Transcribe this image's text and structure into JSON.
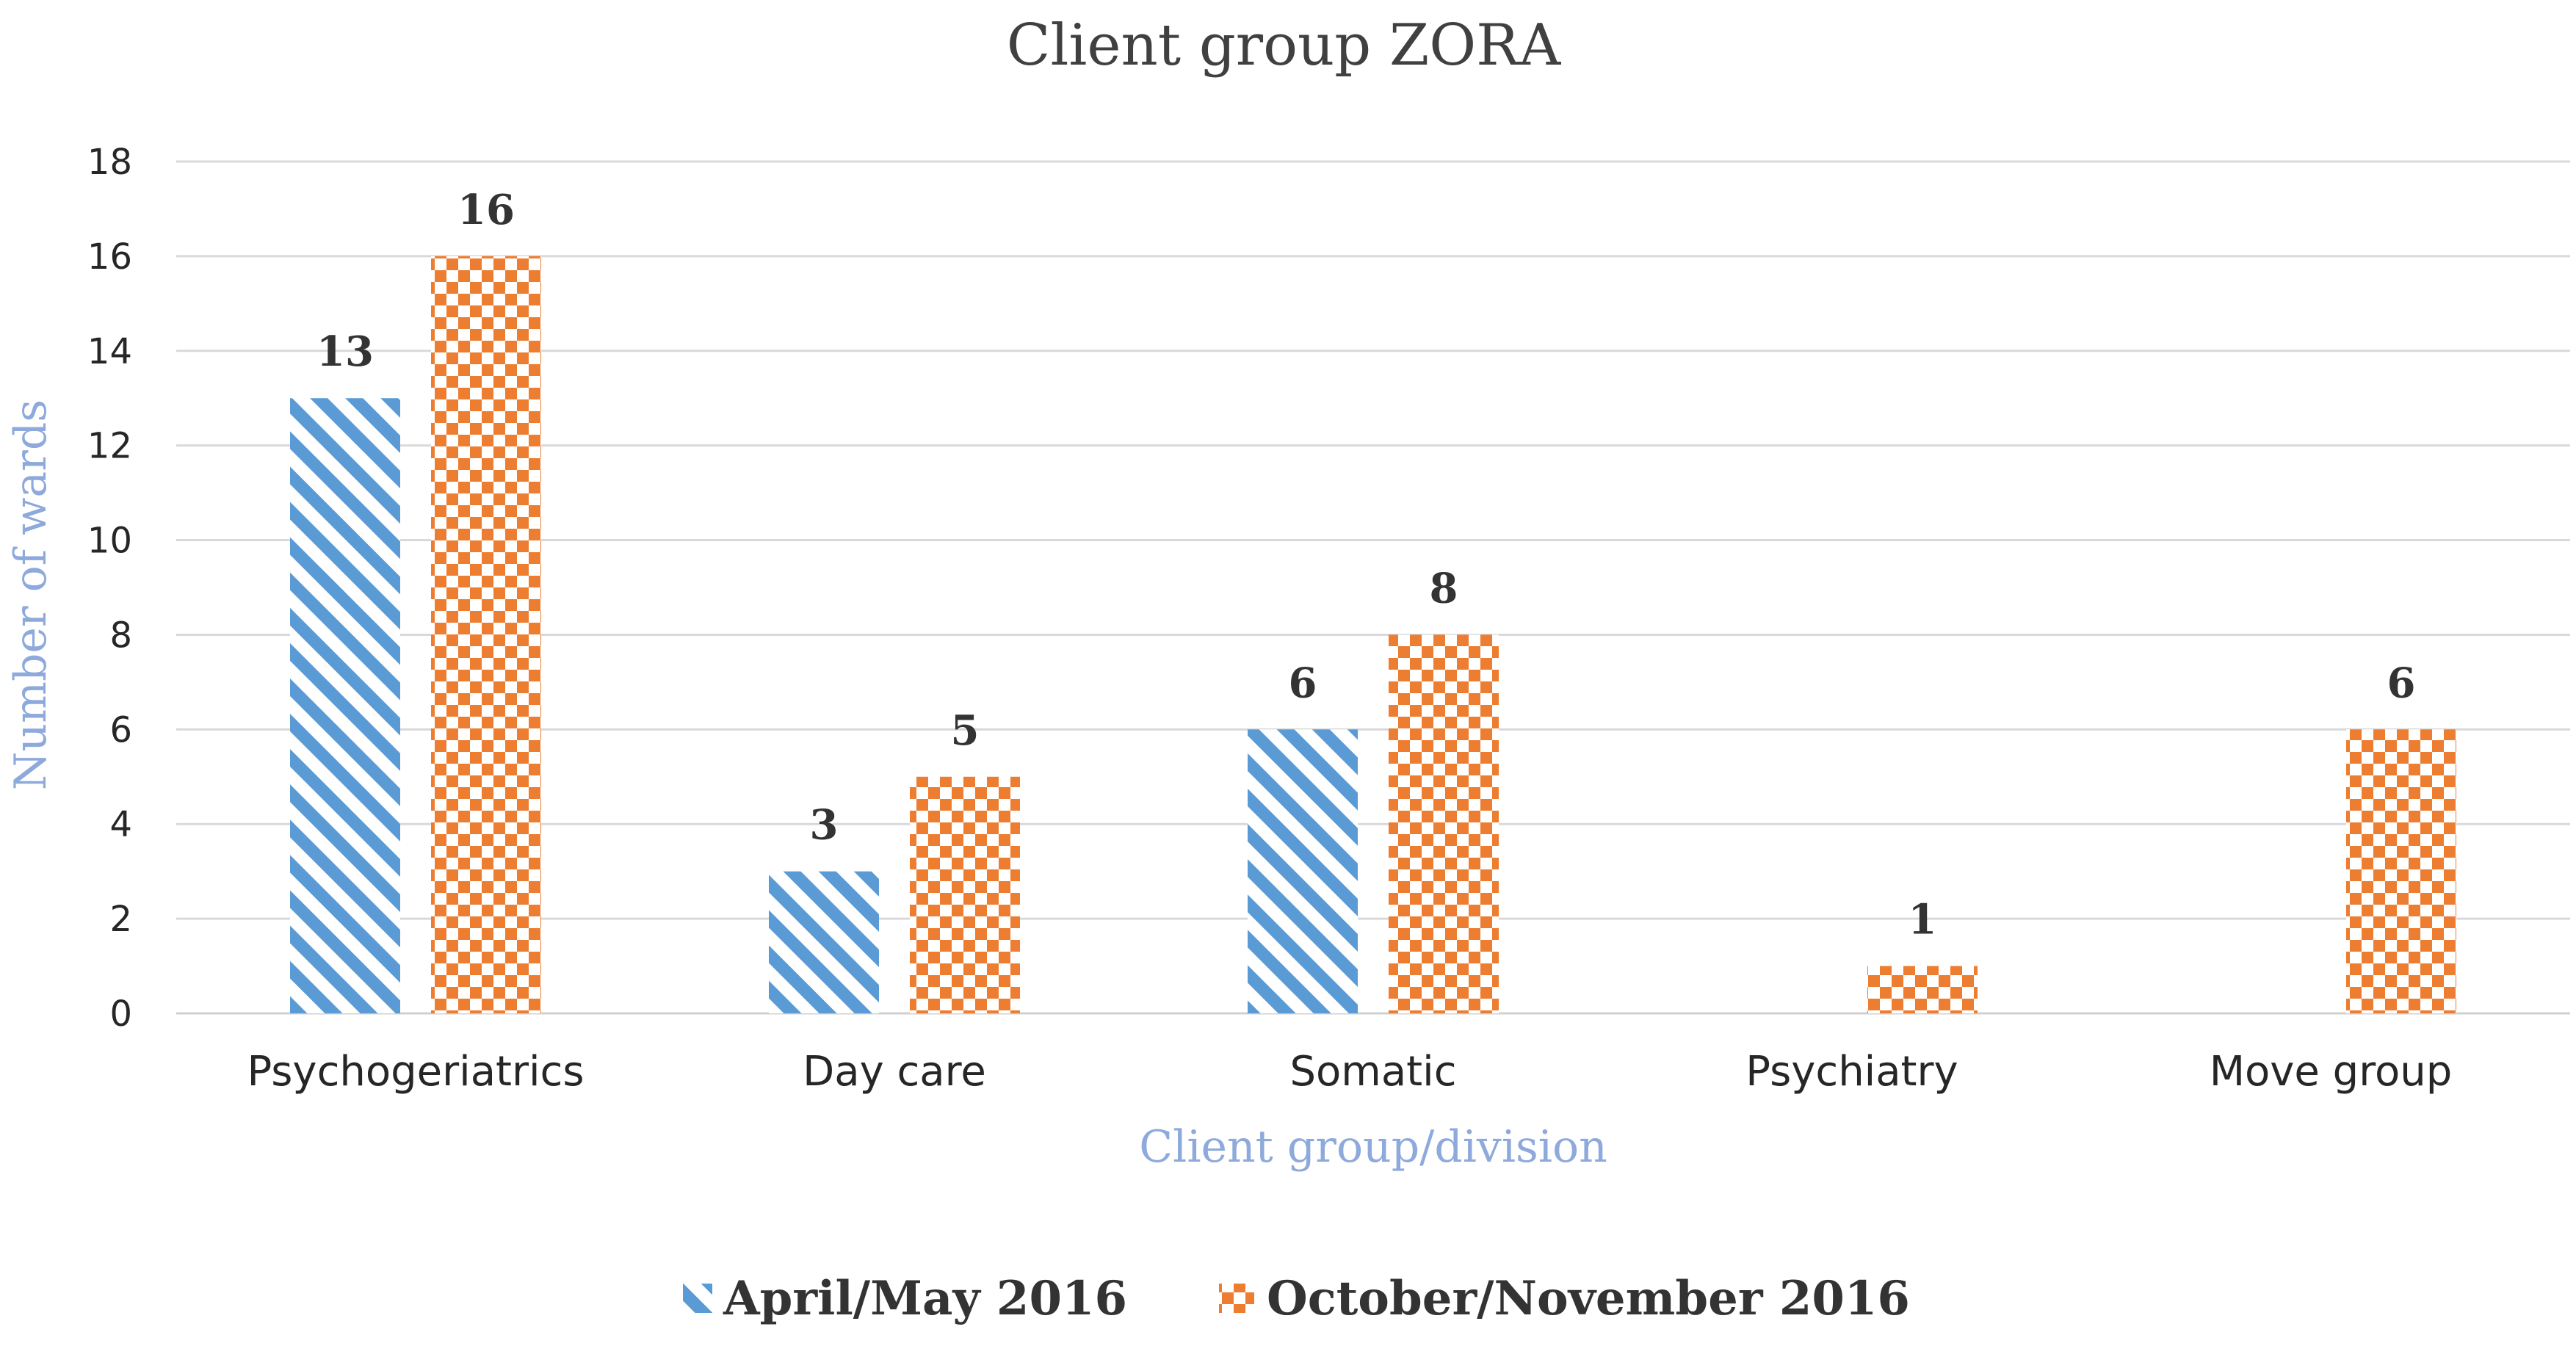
{
  "chart_data": {
    "type": "bar",
    "title": "Client group ZORA",
    "xlabel": "Client group/division",
    "ylabel": "Number of wards",
    "ylim": [
      0,
      18
    ],
    "yticks": [
      0,
      2,
      4,
      6,
      8,
      10,
      12,
      14,
      16,
      18
    ],
    "categories": [
      "Psychogeriatrics",
      "Day care",
      "Somatic",
      "Psychiatry",
      "Move group"
    ],
    "series": [
      {
        "name": "April/May 2016",
        "values": [
          13,
          3,
          6,
          null,
          null
        ],
        "color": "#5b9bd5",
        "pattern": "diagonal-stripes"
      },
      {
        "name": "October/November 2016",
        "values": [
          16,
          5,
          8,
          1,
          6
        ],
        "color": "#ed7d31",
        "pattern": "checkerboard"
      }
    ],
    "grid": true,
    "legend_position": "bottom",
    "data_labels": true
  }
}
